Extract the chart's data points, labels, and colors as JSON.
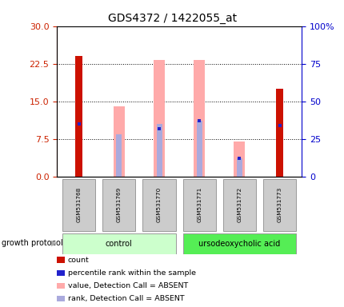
{
  "title": "GDS4372 / 1422055_at",
  "samples": [
    "GSM531768",
    "GSM531769",
    "GSM531770",
    "GSM531771",
    "GSM531772",
    "GSM531773"
  ],
  "red_bar_values": [
    24.0,
    null,
    null,
    null,
    null,
    17.5
  ],
  "pink_bar_values": [
    null,
    14.0,
    23.2,
    23.2,
    7.0,
    null
  ],
  "blue_dot_values_pct": [
    35.0,
    null,
    32.0,
    37.0,
    12.0,
    34.0
  ],
  "purple_bar_values_pct": [
    null,
    28.0,
    35.0,
    37.0,
    12.0,
    null
  ],
  "left_ylim": [
    0,
    30
  ],
  "right_ylim": [
    0,
    100
  ],
  "left_yticks": [
    0,
    7.5,
    15,
    22.5,
    30
  ],
  "right_yticks": [
    0,
    25,
    50,
    75,
    100
  ],
  "right_yticklabels": [
    "0",
    "25",
    "50",
    "75",
    "100%"
  ],
  "left_tick_color": "#cc2200",
  "right_tick_color": "#0000cc",
  "red_bar_color": "#cc1100",
  "pink_bar_color": "#ffaaaa",
  "blue_dot_color": "#2222cc",
  "purple_bar_color": "#aaaadd",
  "control_bg": "#ccffcc",
  "acid_bg": "#55ee55",
  "sample_bg": "#cccccc",
  "growth_protocol_label": "growth protocol",
  "group_label_control": "control",
  "group_label_acid": "ursodeoxycholic acid",
  "red_bar_width": 0.18,
  "pink_bar_width": 0.28,
  "purple_bar_width": 0.14
}
